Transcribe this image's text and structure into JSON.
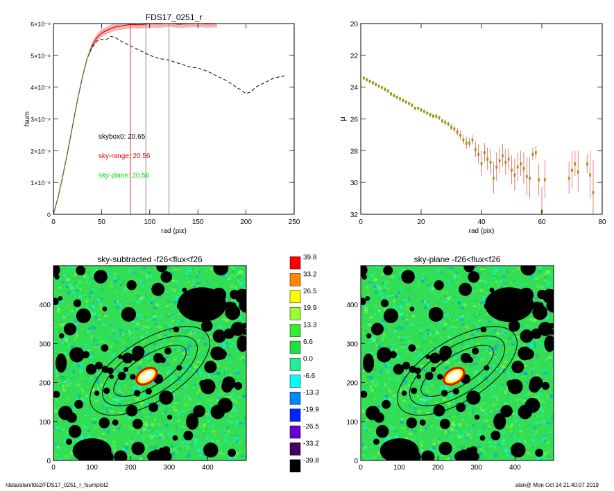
{
  "chart_data": [
    {
      "type": "line",
      "title": "FDS17_0251_r",
      "xlabel": "rad (pix)",
      "ylabel": "fsum",
      "xlim": [
        0,
        250
      ],
      "ylim": [
        0,
        6e-09
      ],
      "xticks": [
        "0",
        "50",
        "100",
        "150",
        "200",
        "250"
      ],
      "yticks": [
        "0",
        "1×10⁻⁹",
        "2×10⁻⁹",
        "3×10⁻⁹",
        "4×10⁻⁹",
        "5×10⁻⁹",
        "6×10⁻⁹"
      ],
      "annotations": [
        {
          "text": "skybox0: 20.65",
          "color": "#000000"
        },
        {
          "text": "sky-range: 20.56",
          "color": "#e00000"
        },
        {
          "text": "sky-plane: 20.56",
          "color": "#00dd00"
        }
      ],
      "vlines": [
        {
          "x": 80,
          "color": "#e03030"
        },
        {
          "x": 96,
          "color": "#888888"
        },
        {
          "x": 120,
          "color": "#888888"
        }
      ],
      "series": [
        {
          "color": "#cc0000",
          "x": [
            0,
            5,
            10,
            15,
            20,
            25,
            30,
            35,
            40,
            45,
            50,
            55,
            60,
            65,
            70,
            75,
            80,
            90,
            100,
            110,
            120,
            130,
            140,
            150,
            160,
            170
          ],
          "y": [
            0,
            0.55,
            1.25,
            2.0,
            2.8,
            3.6,
            4.3,
            4.9,
            5.3,
            5.55,
            5.7,
            5.78,
            5.85,
            5.9,
            5.92,
            5.95,
            5.97,
            5.96,
            6.0,
            5.99,
            6.02,
            5.98,
            6.0,
            6.01,
            5.99,
            6.0
          ]
        },
        {
          "color": "#000000",
          "x": [
            0,
            5,
            10,
            15,
            20,
            25,
            30,
            35,
            40,
            45,
            50,
            55,
            60,
            65,
            70,
            80,
            90,
            100,
            110,
            120,
            130,
            140,
            150,
            160,
            170,
            180,
            190,
            195,
            200,
            205,
            210,
            220,
            230,
            240
          ],
          "y": [
            0,
            0.55,
            1.25,
            2.0,
            2.8,
            3.6,
            4.3,
            4.9,
            5.25,
            5.45,
            5.5,
            5.5,
            5.6,
            5.55,
            5.45,
            5.3,
            5.15,
            5.0,
            4.9,
            4.85,
            4.75,
            4.65,
            4.6,
            4.5,
            4.35,
            4.2,
            4.0,
            3.9,
            3.8,
            3.85,
            4.0,
            4.15,
            4.3,
            4.35
          ]
        }
      ]
    },
    {
      "type": "scatter",
      "xlabel": "rad (pix)",
      "ylabel": "μ",
      "xlim": [
        0,
        80
      ],
      "ylim": [
        32,
        20
      ],
      "xticks": [
        "0",
        "20",
        "40",
        "60",
        "80"
      ],
      "yticks": [
        "20",
        "22",
        "24",
        "26",
        "28",
        "30",
        "32"
      ],
      "series": [
        {
          "color": "#88aa00",
          "x": [
            1,
            2,
            3,
            4,
            5,
            6,
            7,
            8,
            9,
            10,
            11,
            12,
            13,
            14,
            15,
            16,
            17,
            18,
            19,
            20,
            21,
            22,
            23,
            24,
            25,
            26,
            27,
            28,
            29,
            30,
            31,
            32,
            33,
            34,
            35,
            36,
            37,
            38,
            39,
            40,
            41,
            42,
            43,
            44,
            45,
            46,
            47,
            48,
            49,
            50,
            51,
            52,
            53,
            54,
            55,
            56,
            57,
            58,
            59,
            60,
            61,
            69,
            70,
            71,
            72,
            75,
            76,
            77
          ],
          "y": [
            23.4,
            23.5,
            23.6,
            23.7,
            23.8,
            23.9,
            24.0,
            24.1,
            24.2,
            24.4,
            24.5,
            24.6,
            24.7,
            24.8,
            24.9,
            25.0,
            25.1,
            25.3,
            25.3,
            25.4,
            25.5,
            25.6,
            25.7,
            25.8,
            25.8,
            25.9,
            26.1,
            26.2,
            26.3,
            26.5,
            26.6,
            26.8,
            27.0,
            27.3,
            27.5,
            27.5,
            27.3,
            27.9,
            28.2,
            28.8,
            28.1,
            28.5,
            28.7,
            29.7,
            29.0,
            28.6,
            28.3,
            28.7,
            28.5,
            29.2,
            29.5,
            29.0,
            28.8,
            29.1,
            29.6,
            29.7,
            28.2,
            28.1,
            29.8,
            31.8,
            29.8,
            29.7,
            29.2,
            28.8,
            29.3,
            28.8,
            29.5,
            30.6
          ],
          "err": [
            0.05,
            0.05,
            0.05,
            0.05,
            0.05,
            0.05,
            0.05,
            0.05,
            0.05,
            0.05,
            0.05,
            0.05,
            0.05,
            0.05,
            0.05,
            0.05,
            0.05,
            0.05,
            0.05,
            0.05,
            0.08,
            0.08,
            0.08,
            0.1,
            0.1,
            0.1,
            0.1,
            0.15,
            0.15,
            0.2,
            0.2,
            0.25,
            0.3,
            0.3,
            0.4,
            0.3,
            0.3,
            0.5,
            0.6,
            0.8,
            0.6,
            0.7,
            0.8,
            1.0,
            0.9,
            0.8,
            0.7,
            0.8,
            0.7,
            0.9,
            1.0,
            0.9,
            0.8,
            1.0,
            1.2,
            1.3,
            0.4,
            0.4,
            1.0,
            1.5,
            1.2,
            1.0,
            1.2,
            0.8,
            1.3,
            0.6,
            1.5,
            2.0
          ]
        }
      ]
    },
    {
      "type": "heatmap",
      "title": "sky-subtracted -f26<flux<f26",
      "xlim": [
        0,
        500
      ],
      "ylim": [
        0,
        500
      ],
      "xticks": [
        "0",
        "100",
        "200",
        "300",
        "400"
      ],
      "yticks": [
        "0",
        "100",
        "200",
        "300",
        "400"
      ]
    },
    {
      "type": "heatmap",
      "title": "sky-plane -f26<flux<f26",
      "xlim": [
        0,
        500
      ],
      "ylim": [
        0,
        500
      ],
      "xticks": [
        "0",
        "100",
        "200",
        "300",
        "400"
      ],
      "yticks": [
        "0",
        "100",
        "200",
        "300",
        "400"
      ]
    }
  ],
  "colorbar": {
    "labels": [
      "39.8",
      "33.2",
      "26.5",
      "19.9",
      "13.3",
      "6.6",
      "0.0",
      "-6.6",
      "-13.3",
      "-19.9",
      "-26.5",
      "-33.2",
      "-39.8"
    ],
    "colors": [
      "#ff0000",
      "#ff8800",
      "#ffff00",
      "#99ff33",
      "#33ee33",
      "#22dd44",
      "#22ee99",
      "#00ffff",
      "#0088ff",
      "#0022ff",
      "#6600cc",
      "#440066",
      "#000000"
    ]
  },
  "footer": {
    "left": "/data/alan/fds2/FDS17_0251_r_fsumplot2",
    "right": "alan@  Mon Oct 14 21:40:07 2019"
  }
}
